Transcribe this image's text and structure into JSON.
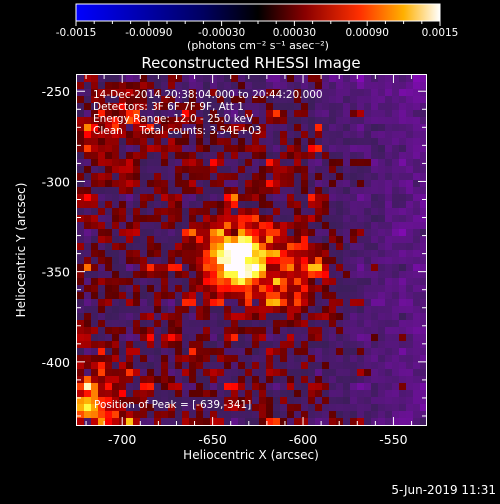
{
  "colorbar": {
    "tick_labels": [
      "-0.0015",
      "-0.00090",
      "-0.00030",
      "0.00030",
      "0.00090",
      "0.0015"
    ],
    "units_label": "(photons cm⁻² s⁻¹ asec⁻²)",
    "range": [
      -0.0015,
      0.0015
    ],
    "colormap": "blue-black-red-yellow-white"
  },
  "image": {
    "title": "Reconstructed RHESSI Image",
    "info_lines": [
      "14-Dec-2014 20:38:04.000 to 20:44:20.000",
      "Detectors: 3F 6F 7F 9F, Att 1",
      "Energy Range: 12.0 - 25.0 keV",
      "Clean     Total counts: 3.54E+03"
    ],
    "peak_label": "Position of Peak = [-639,-341]",
    "peak_position": [
      -639,
      -341
    ]
  },
  "chart_data": {
    "type": "heatmap",
    "title": "Reconstructed RHESSI Image",
    "xlabel": "Heliocentric X (arcsec)",
    "ylabel": "Heliocentric Y (arcsec)",
    "xlim": [
      -725,
      -532
    ],
    "ylim": [
      -435,
      -241
    ],
    "x_ticks": [
      -700,
      -650,
      -600,
      -550
    ],
    "y_ticks": [
      -250,
      -300,
      -350,
      -400
    ],
    "x_tick_labels": [
      "-700",
      "-650",
      "-600",
      "-550"
    ],
    "y_tick_labels": [
      "-250",
      "-300",
      "-350",
      "-400"
    ],
    "grid": false
  },
  "footer": {
    "date": "5-Jun-2019 11:31"
  }
}
